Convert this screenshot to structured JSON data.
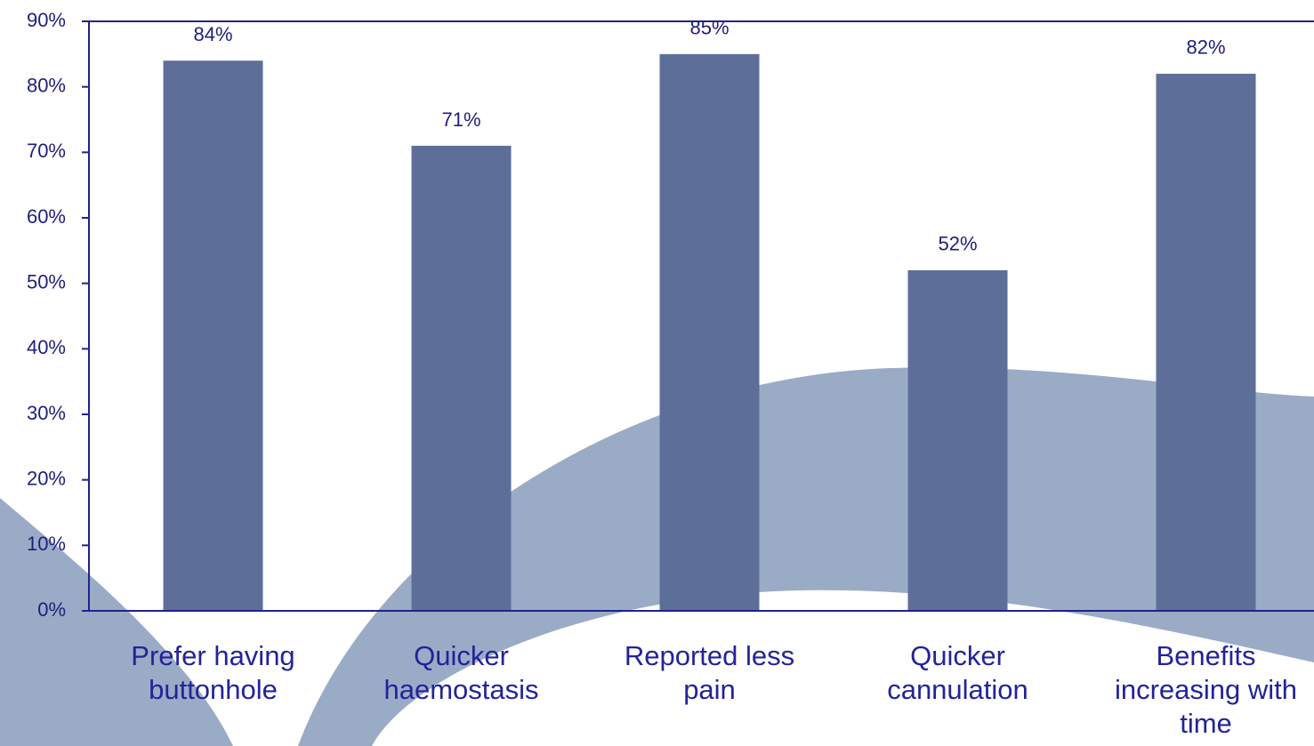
{
  "chart_data": {
    "type": "bar",
    "categories": [
      "Prefer having buttonhole",
      "Quicker haemostasis",
      "Reported less pain",
      "Quicker cannulation",
      "Benefits increasing with time"
    ],
    "values": [
      84,
      71,
      85,
      52,
      82
    ],
    "value_labels": [
      "84%",
      "71%",
      "85%",
      "52%",
      "82%"
    ],
    "color": "#5d6f99",
    "ylim": [
      0,
      90
    ],
    "yticks": [
      {
        "value": 0,
        "label": "0%"
      },
      {
        "value": 10,
        "label": "10%"
      },
      {
        "value": 20,
        "label": "20%"
      },
      {
        "value": 30,
        "label": "30%"
      },
      {
        "value": 40,
        "label": "40%"
      },
      {
        "value": 50,
        "label": "50%"
      },
      {
        "value": 60,
        "label": "60%"
      },
      {
        "value": 70,
        "label": "70%"
      },
      {
        "value": 80,
        "label": "80%"
      },
      {
        "value": 90,
        "label": "90%"
      }
    ],
    "grid": false
  }
}
